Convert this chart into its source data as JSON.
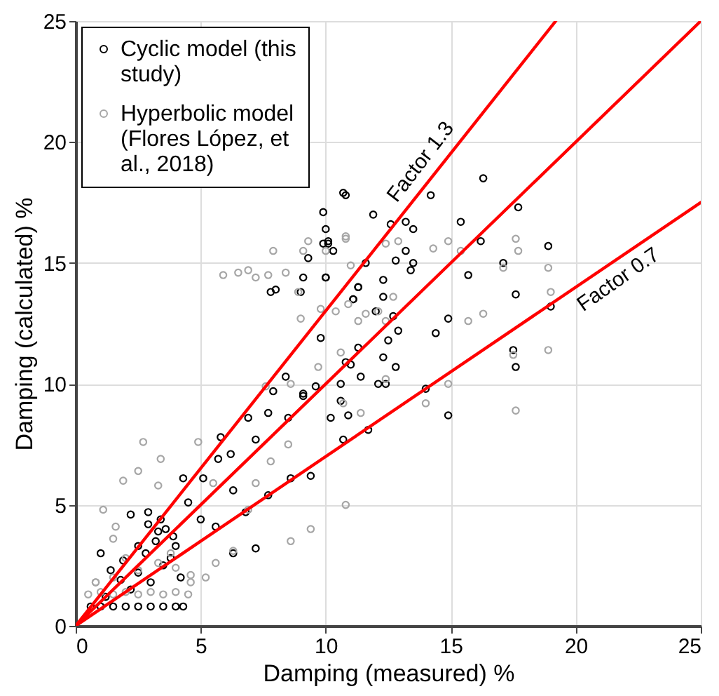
{
  "chart_data": {
    "type": "scatter",
    "xlabel": "Damping (measured) %",
    "ylabel": "Damping (calculated) %",
    "xlim": [
      0,
      25
    ],
    "ylim": [
      0,
      25
    ],
    "xticks": [
      0,
      5,
      10,
      15,
      20,
      25
    ],
    "yticks": [
      0,
      5,
      10,
      15,
      20,
      25
    ],
    "grid": true,
    "legend": "top left",
    "marker": "circle",
    "annotations": [
      {
        "text": "Factor 1.3",
        "x": 14.4,
        "y": 18.7
      },
      {
        "text": "Factor 0.7",
        "x": 21.3,
        "y": 14.9
      }
    ],
    "series": [
      {
        "name": "Cyclic model (this study)",
        "color": "#000000",
        "x": [
          16.3,
          14.2,
          17.7,
          15.4,
          16.2,
          18.9,
          17.1,
          15.7,
          17.6,
          19.0,
          14.9,
          14.4,
          17.5,
          17.6,
          14.0,
          14.9,
          11.7,
          12.6,
          13.2,
          13.5,
          11.9,
          10.7,
          10.1,
          13.2,
          12.8,
          13.5,
          13.4,
          11.6,
          10.0,
          11.3,
          12.3,
          12.3,
          11.1,
          12.0,
          12.7,
          12.9,
          12.5,
          11.3,
          12.3,
          12.8,
          10.8,
          11.0,
          11.4,
          12.1,
          12.4,
          10.6,
          10.6,
          10.9,
          10.2,
          10.8,
          9.9,
          10.0,
          9.9,
          10.1,
          9.3,
          9.1,
          10.0,
          7.8,
          8.0,
          9.0,
          9.8,
          11.3,
          11.1,
          8.4,
          7.9,
          9.1,
          9.6,
          10.3,
          6.9,
          7.7,
          7.2,
          5.8,
          6.2,
          5.7,
          5.1,
          4.3,
          6.8,
          6.3,
          7.7,
          8.6,
          9.4,
          7.2,
          6.3,
          5.6,
          5.0,
          4.5,
          2.9,
          2.2,
          3.3,
          3.9,
          2.5,
          1.4,
          1.0,
          1.9,
          8.5,
          9.1,
          10.7,
          0.6,
          1.0,
          1.5,
          2.0,
          2.5,
          3.0,
          3.5,
          4.0,
          4.3,
          1.2,
          2.2,
          3.0,
          3.5,
          2.8,
          3.2,
          2.5,
          1.8,
          3.8,
          4.0,
          3.6,
          2.9,
          3.4,
          4.2
        ],
        "values": [
          18.5,
          17.8,
          17.3,
          16.7,
          15.9,
          15.7,
          15.0,
          14.5,
          13.7,
          13.2,
          12.7,
          12.1,
          11.4,
          10.7,
          9.8,
          8.7,
          8.1,
          16.6,
          16.7,
          16.4,
          17.0,
          17.9,
          15.9,
          15.5,
          15.1,
          15.0,
          14.7,
          15.0,
          14.4,
          14.0,
          14.3,
          13.6,
          13.5,
          13.0,
          12.8,
          12.2,
          11.8,
          11.5,
          11.1,
          10.7,
          10.9,
          10.8,
          10.3,
          10.0,
          10.0,
          10.0,
          9.3,
          8.7,
          8.6,
          17.8,
          17.1,
          16.4,
          15.8,
          15.8,
          15.2,
          14.4,
          14.4,
          13.8,
          13.9,
          13.8,
          11.9,
          14.0,
          13.5,
          10.3,
          9.7,
          9.6,
          9.9,
          15.5,
          8.6,
          8.8,
          7.7,
          7.8,
          7.1,
          6.9,
          6.1,
          6.1,
          4.7,
          5.6,
          5.4,
          6.1,
          6.2,
          3.2,
          3.0,
          4.1,
          4.4,
          5.1,
          4.7,
          4.6,
          3.9,
          3.7,
          3.3,
          2.3,
          3.0,
          2.7,
          8.6,
          9.5,
          7.7,
          0.8,
          0.8,
          0.8,
          0.8,
          0.8,
          0.8,
          0.8,
          0.8,
          0.8,
          1.2,
          1.5,
          1.8,
          2.5,
          3.0,
          3.5,
          2.2,
          1.9,
          2.8,
          3.3,
          4.0,
          4.2,
          4.4,
          2.0
        ]
      },
      {
        "name": "Hyperbolic model (Flores López, et al., 2018)",
        "color": "#a6a6a6",
        "x": [
          5.9,
          6.5,
          6.9,
          7.2,
          7.7,
          8.4,
          7.9,
          9.3,
          9.1,
          10.8,
          10.0,
          8.9,
          9.0,
          9.8,
          10.4,
          11.6,
          10.6,
          9.7,
          8.6,
          7.6,
          11.3,
          14.9,
          14.3,
          15.4,
          17.6,
          17.7,
          18.9,
          17.1,
          19.0,
          15.7,
          16.3,
          18.9,
          17.5,
          14.9,
          14.0,
          17.6,
          12.4,
          12.4,
          12.7,
          12.1,
          10.9,
          11.0,
          12.4,
          12.9,
          10.8,
          11.4,
          2.7,
          1.9,
          2.5,
          3.4,
          4.9,
          3.3,
          1.1,
          1.6,
          1.5,
          7.2,
          7.8,
          8.5,
          8.6,
          9.4,
          10.8,
          6.9,
          6.3,
          5.6,
          5.2,
          4.6,
          0.8,
          10.7,
          5.5,
          0.5,
          1.0,
          1.5,
          2.0,
          2.5,
          3.0,
          3.5,
          4.0,
          4.5,
          0.8,
          1.5,
          2.5,
          3.3,
          4.0,
          4.6,
          2.0,
          3.8
        ],
        "values": [
          14.5,
          14.6,
          14.7,
          14.4,
          14.5,
          14.6,
          15.5,
          15.9,
          15.5,
          16.1,
          15.5,
          13.8,
          12.7,
          13.1,
          13.0,
          12.9,
          11.3,
          10.7,
          10.0,
          9.9,
          12.6,
          15.9,
          15.6,
          15.5,
          16.0,
          15.5,
          14.8,
          14.8,
          13.8,
          12.6,
          12.9,
          11.4,
          11.2,
          10.0,
          9.2,
          8.9,
          10.2,
          12.6,
          13.6,
          13.0,
          13.3,
          14.9,
          15.8,
          15.9,
          16.0,
          8.8,
          7.6,
          6.0,
          6.4,
          6.9,
          7.6,
          5.8,
          4.8,
          4.1,
          3.6,
          5.9,
          6.8,
          7.5,
          3.5,
          4.0,
          5.0,
          4.8,
          3.1,
          2.6,
          2.0,
          2.1,
          1.8,
          9.2,
          5.9,
          1.3,
          1.4,
          1.3,
          1.4,
          1.3,
          1.4,
          1.3,
          1.4,
          1.3,
          1.8,
          2.0,
          2.3,
          2.6,
          2.4,
          1.8,
          2.8,
          3.0
        ]
      },
      {
        "type": "line",
        "color": "#ff0000",
        "x": [
          0,
          25
        ],
        "values": [
          0,
          25
        ],
        "marker": "none"
      },
      {
        "type": "line",
        "color": "#ff0000",
        "x": [
          0,
          19.2
        ],
        "values": [
          0,
          25
        ],
        "marker": "none"
      },
      {
        "type": "line",
        "color": "#ff0000",
        "x": [
          0,
          25
        ],
        "values": [
          0,
          17.5
        ],
        "marker": "none"
      }
    ]
  }
}
